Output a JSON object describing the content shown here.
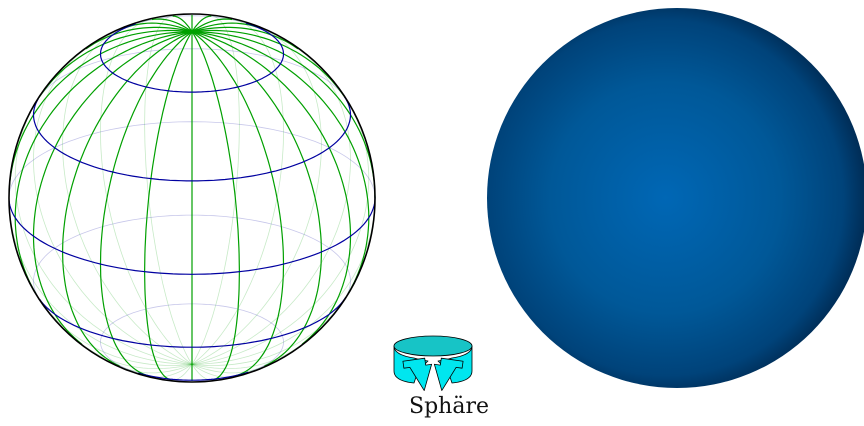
{
  "caption": "Sphäre",
  "wireframe_sphere": {
    "meridian_color": "#00a000",
    "parallel_color": "#0000a0",
    "outline_color": "#000000"
  },
  "shaded_sphere": {
    "center_color": "#0067b5",
    "edge_color": "#00254a"
  },
  "rotate_icon": {
    "icon": "rotate-icon",
    "fill": "#00e6ef",
    "top_fill": "#17c4c6"
  }
}
